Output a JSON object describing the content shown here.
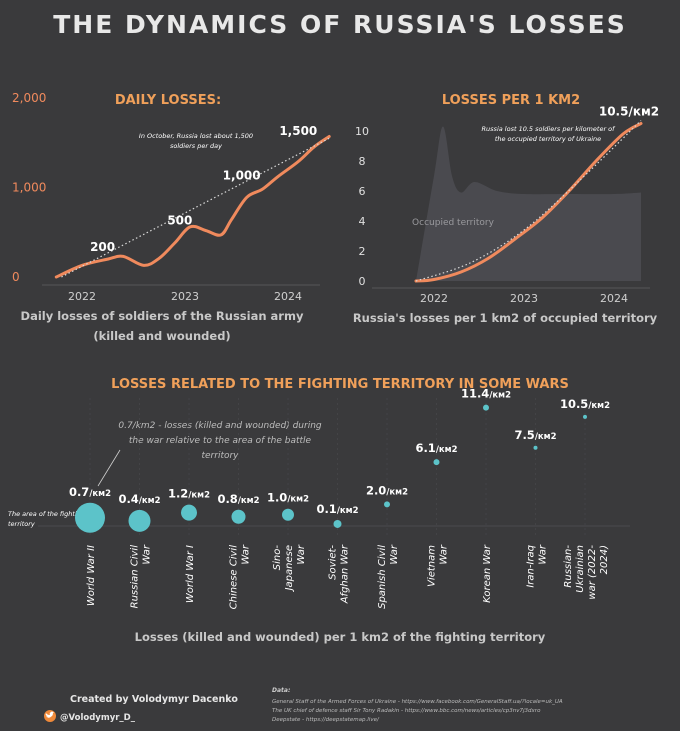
{
  "title": "THE DYNAMICS OF RUSSIA'S LOSSES",
  "colors": {
    "accent": "#f0a05a",
    "line": "#f08a5d",
    "bubble": "#5cc3c9",
    "background": "#3a3a3c",
    "area": "#4a4a4f"
  },
  "chart_data": [
    {
      "type": "line",
      "title": "DAILY LOSSES:",
      "caption_lines": [
        "Daily losses of soldiers of the Russian army",
        "(killed and wounded)"
      ],
      "x_ticks": [
        "2022",
        "2023",
        "2024"
      ],
      "y_ticks": [
        "0",
        "1,000",
        "2,000"
      ],
      "ylim": [
        0,
        2000
      ],
      "annotation": [
        "In October, Russia lost about 1,500",
        "soldiers per day"
      ],
      "labels": [
        {
          "text": "200",
          "x": 2022.2,
          "y": 200
        },
        {
          "text": "500",
          "x": 2022.95,
          "y": 500
        },
        {
          "text": "1,000",
          "x": 2023.55,
          "y": 1000
        },
        {
          "text": "1,500",
          "x": 2024.1,
          "y": 1500
        }
      ],
      "series": [
        {
          "values": [
            [
              2021.75,
              0
            ],
            [
              2022.0,
              130
            ],
            [
              2022.25,
              200
            ],
            [
              2022.4,
              230
            ],
            [
              2022.6,
              130
            ],
            [
              2022.75,
              210
            ],
            [
              2022.9,
              380
            ],
            [
              2023.05,
              560
            ],
            [
              2023.2,
              520
            ],
            [
              2023.35,
              470
            ],
            [
              2023.45,
              640
            ],
            [
              2023.6,
              890
            ],
            [
              2023.75,
              980
            ],
            [
              2023.9,
              1120
            ],
            [
              2024.1,
              1290
            ],
            [
              2024.25,
              1450
            ],
            [
              2024.4,
              1570
            ]
          ]
        },
        {
          "style": "trend",
          "values": [
            [
              2021.8,
              0
            ],
            [
              2024.4,
              1550
            ]
          ]
        }
      ]
    },
    {
      "type": "area+line",
      "title": "LOSSES PER 1 KM2",
      "caption": "Russia's losses per 1 km2 of occupied territory",
      "x_ticks": [
        "2022",
        "2023",
        "2024"
      ],
      "y_ticks": [
        "0",
        "2",
        "4",
        "6",
        "8",
        "10"
      ],
      "ylim": [
        0,
        11
      ],
      "annotation": [
        "Russia lost 10.5 soldiers per kilometer of",
        "the occupied territory of Ukraine"
      ],
      "value_label": "10.5/км2",
      "area_label": "Occupied territory",
      "area": [
        [
          2021.8,
          0
        ],
        [
          2022.0,
          7
        ],
        [
          2022.1,
          10.3
        ],
        [
          2022.2,
          7
        ],
        [
          2022.3,
          5.9
        ],
        [
          2022.45,
          6.6
        ],
        [
          2022.7,
          6.0
        ],
        [
          2023.0,
          5.8
        ],
        [
          2023.5,
          5.8
        ],
        [
          2024.0,
          5.8
        ],
        [
          2024.3,
          5.9
        ]
      ],
      "series": [
        {
          "values": [
            [
              2021.8,
              0
            ],
            [
              2022.0,
              0.1
            ],
            [
              2022.3,
              0.6
            ],
            [
              2022.6,
              1.5
            ],
            [
              2022.9,
              2.8
            ],
            [
              2023.2,
              4.2
            ],
            [
              2023.5,
              6.0
            ],
            [
              2023.8,
              8.0
            ],
            [
              2024.1,
              9.8
            ],
            [
              2024.3,
              10.5
            ]
          ]
        },
        {
          "style": "trend",
          "values": [
            [
              2021.8,
              0
            ],
            [
              2022.4,
              1.2
            ],
            [
              2023.0,
              3.4
            ],
            [
              2023.6,
              6.6
            ],
            [
              2024.3,
              10.7
            ]
          ]
        }
      ]
    },
    {
      "type": "bubble",
      "title": "LOSSES RELATED TO THE FIGHTING TERRITORY IN SOME WARS",
      "caption": "Losses (killed and wounded) per 1 km2 of the fighting territory",
      "explanation": [
        "0.7/km2 - losses (killed and wounded) during",
        "the war relative to the area of the battle",
        "territory"
      ],
      "area_note": [
        "The area of the fighting",
        "territory"
      ],
      "unit_label": "/км2",
      "categories": [
        [
          "World War II"
        ],
        [
          "Russian Civil",
          "War"
        ],
        [
          "World War I"
        ],
        [
          "Chinese Civil",
          "War"
        ],
        [
          "Sino-",
          "Japanese",
          "War"
        ],
        [
          "Soviet-",
          "Afghan War"
        ],
        [
          "Spanish Civil",
          "War"
        ],
        [
          "Vietnam",
          "War"
        ],
        [
          "Korean War"
        ],
        [
          "Iran-Iraq",
          "War"
        ],
        [
          "Russian-",
          "Ukrainian",
          "war (2022-",
          "2024)"
        ]
      ],
      "values": [
        0.7,
        0.4,
        1.2,
        0.8,
        1.0,
        0.1,
        2.0,
        6.1,
        11.4,
        7.5,
        10.5
      ],
      "value_labels": [
        "0.7",
        "0.4",
        "1.2",
        "0.8",
        "1.0",
        "0.1",
        "2.0",
        "6.1",
        "11.4",
        "7.5",
        "10.5"
      ],
      "bubble_size": [
        15,
        11,
        8,
        7,
        6,
        4,
        3,
        3,
        3,
        2,
        2
      ]
    }
  ],
  "footer": {
    "credit": "Created by Volodymyr Dacenko",
    "twitter": "@Volodymyr_D_",
    "data_heading": "Data:",
    "data_lines": [
      "General Staff of the Armed Forces of Ukraine - https://www.facebook.com/GeneralStaff.ua/?locale=uk_UA",
      "The UK chief of defence staff Sir Tony Radakin - https://www.bbc.com/news/articles/cp3nv7j3dxro",
      "Deepstate - https://deepstatemap.live/"
    ]
  }
}
